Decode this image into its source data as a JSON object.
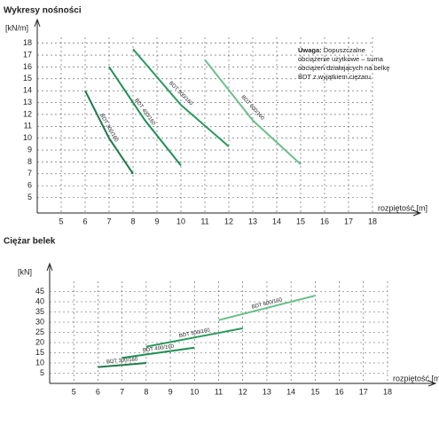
{
  "chart_data": [
    {
      "type": "line",
      "title": "Wykresy nośności",
      "y_label": "[kN/m]",
      "x_label": "rozpiętość [m]",
      "note_label": "Uwaga:",
      "note": "Dopuszczalne obciążenie użytkowe – suma obciążeń działających na belkę BDT z wyjątkiem ciężaru",
      "xlim": [
        4,
        18
      ],
      "xticks": [
        5,
        6,
        7,
        8,
        9,
        10,
        11,
        12,
        13,
        14,
        15,
        16,
        17,
        18
      ],
      "ylim": [
        4,
        18.5
      ],
      "yticks": [
        5,
        6,
        7,
        8,
        9,
        10,
        11,
        12,
        13,
        14,
        15,
        16,
        17,
        18
      ],
      "grid": true,
      "series": [
        {
          "name": "BDT 300/160",
          "color": "#1e7a4a",
          "x": [
            6,
            7,
            8
          ],
          "values": [
            14,
            10,
            7
          ]
        },
        {
          "name": "BDT 400/160",
          "color": "#1f8f55",
          "x": [
            7,
            8.5,
            10
          ],
          "values": [
            16,
            11.5,
            7.7
          ]
        },
        {
          "name": "BDT 500/160",
          "color": "#2a9a5e",
          "x": [
            8,
            10,
            12
          ],
          "values": [
            17.5,
            12.8,
            9.3
          ]
        },
        {
          "name": "BDT 600/160",
          "color": "#6cc08c",
          "x": [
            11,
            13,
            15
          ],
          "values": [
            16.6,
            11.5,
            7.8
          ]
        }
      ]
    },
    {
      "type": "line",
      "title": "Ciężar belek",
      "y_label": "[kN]",
      "x_label": "rozpiętość [m]",
      "xlim": [
        4,
        18
      ],
      "xticks": [
        5,
        6,
        7,
        8,
        9,
        10,
        11,
        12,
        13,
        14,
        15,
        16,
        17,
        18
      ],
      "ylim": [
        0,
        50
      ],
      "yticks": [
        5,
        10,
        15,
        20,
        25,
        30,
        35,
        40,
        45
      ],
      "grid": true,
      "series": [
        {
          "name": "BDT 300/160",
          "color": "#1e7a4a",
          "x": [
            6,
            8
          ],
          "values": [
            8,
            10
          ]
        },
        {
          "name": "BDT 400/160",
          "color": "#1f8f55",
          "x": [
            7,
            10
          ],
          "values": [
            12.5,
            17.5
          ]
        },
        {
          "name": "BDT 500/160",
          "color": "#2a9a5e",
          "x": [
            8,
            12
          ],
          "values": [
            18,
            27
          ]
        },
        {
          "name": "BDT 600/160",
          "color": "#6cc08c",
          "x": [
            11,
            15
          ],
          "values": [
            31,
            43
          ]
        }
      ]
    }
  ]
}
